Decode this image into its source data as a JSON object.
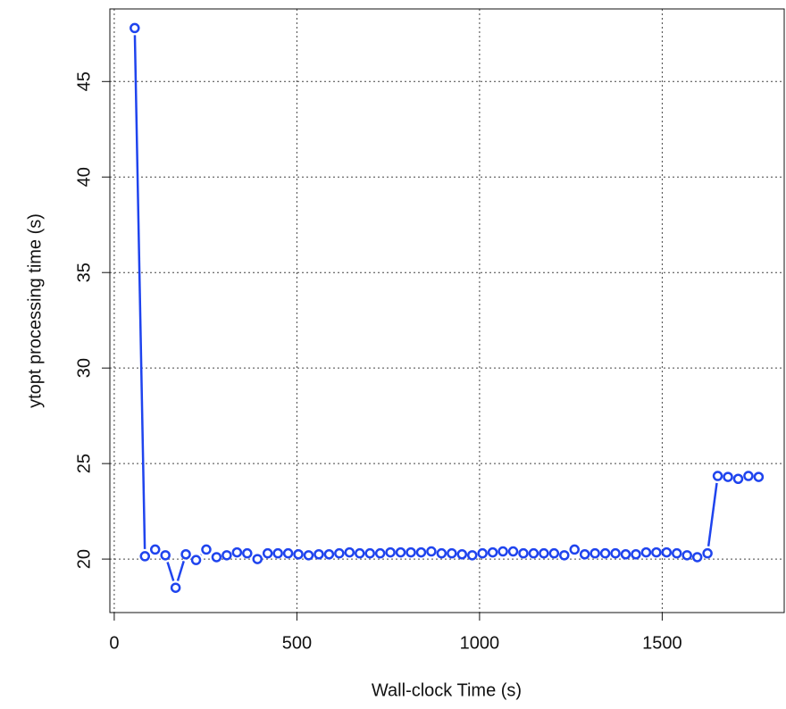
{
  "chart_data": {
    "type": "line",
    "x_label": "Wall-clock Time (s)",
    "y_label": "ytopt processing time (s)",
    "series": [
      {
        "color": "#1f44ee",
        "x": [
          56,
          84,
          112,
          140,
          168,
          196,
          224,
          252,
          280,
          308,
          336,
          364,
          392,
          420,
          448,
          476,
          504,
          532,
          560,
          588,
          616,
          644,
          672,
          700,
          728,
          756,
          784,
          812,
          840,
          868,
          896,
          924,
          952,
          980,
          1008,
          1036,
          1064,
          1092,
          1120,
          1148,
          1176,
          1204,
          1232,
          1260,
          1288,
          1316,
          1344,
          1372,
          1400,
          1428,
          1456,
          1484,
          1512,
          1540,
          1568,
          1596,
          1624,
          1652,
          1680,
          1708,
          1736,
          1764
        ],
        "values": [
          47.8,
          20.15,
          20.5,
          20.2,
          18.5,
          20.25,
          19.95,
          20.5,
          20.1,
          20.2,
          20.35,
          20.3,
          20.0,
          20.3,
          20.3,
          20.3,
          20.25,
          20.2,
          20.25,
          20.25,
          20.3,
          20.35,
          20.3,
          20.3,
          20.3,
          20.35,
          20.35,
          20.35,
          20.35,
          20.4,
          20.3,
          20.3,
          20.25,
          20.2,
          20.3,
          20.35,
          20.4,
          20.4,
          20.3,
          20.3,
          20.3,
          20.3,
          20.2,
          20.5,
          20.25,
          20.3,
          20.3,
          20.3,
          20.25,
          20.25,
          20.35,
          20.35,
          20.35,
          20.3,
          20.2,
          20.1,
          20.3,
          24.35,
          24.3,
          24.2,
          24.35,
          24.3
        ]
      }
    ],
    "xlim": [
      -12,
      1834
    ],
    "xticks": [
      0,
      500,
      1000,
      1500
    ],
    "ylim": [
      17.2,
      48.8
    ],
    "yticks": [
      20,
      25,
      30,
      35,
      40,
      45
    ],
    "grid": true
  }
}
